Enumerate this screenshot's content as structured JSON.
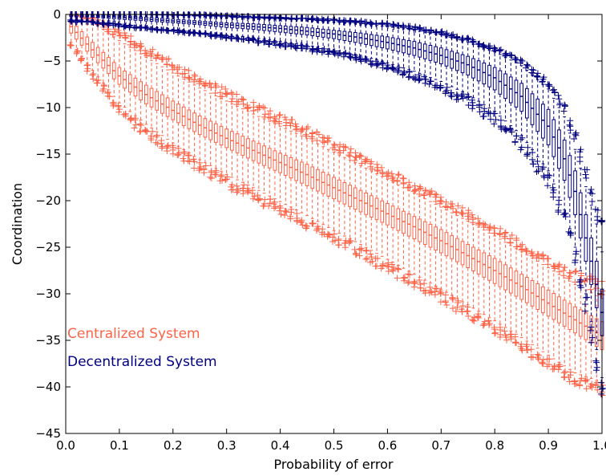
{
  "chart_data": {
    "type": "box",
    "xlabel": "Probability of error",
    "ylabel": "Coordination",
    "xlim": [
      0.0,
      1.0
    ],
    "ylim": [
      -45,
      0
    ],
    "x_ticks": [
      "0.0",
      "0.1",
      "0.2",
      "0.3",
      "0.4",
      "0.5",
      "0.6",
      "0.7",
      "0.8",
      "0.9",
      "1.0"
    ],
    "y_ticks": [
      "0",
      "−5",
      "−10",
      "−15",
      "−20",
      "−25",
      "−30",
      "−35",
      "−40",
      "−45"
    ],
    "x_tick_values": [
      0.0,
      0.1,
      0.2,
      0.3,
      0.4,
      0.5,
      0.6,
      0.7,
      0.8,
      0.9,
      1.0
    ],
    "y_tick_values": [
      0,
      -5,
      -10,
      -15,
      -20,
      -25,
      -30,
      -35,
      -40,
      -45
    ],
    "grid": false,
    "legend_position": "left",
    "series": [
      {
        "name": "Centralized System",
        "color": "#ff6347",
        "x": [
          0.01,
          0.05,
          0.1,
          0.15,
          0.2,
          0.25,
          0.3,
          0.35,
          0.4,
          0.45,
          0.5,
          0.55,
          0.6,
          0.65,
          0.7,
          0.75,
          0.8,
          0.85,
          0.9,
          0.95,
          1.0
        ],
        "median": [
          -1.3,
          -3.8,
          -6.6,
          -8.6,
          -10.3,
          -11.9,
          -13.3,
          -14.6,
          -15.9,
          -17.2,
          -18.6,
          -20.0,
          -21.4,
          -22.8,
          -24.3,
          -25.9,
          -27.5,
          -29.2,
          -31.0,
          -32.8,
          -34.5
        ],
        "q1": [
          -2.0,
          -4.6,
          -7.5,
          -9.6,
          -11.3,
          -12.9,
          -14.3,
          -15.7,
          -17.0,
          -18.4,
          -19.8,
          -21.2,
          -22.6,
          -24.1,
          -25.6,
          -27.2,
          -28.9,
          -30.6,
          -32.4,
          -34.2,
          -36.0
        ],
        "q3": [
          -0.7,
          -3.0,
          -5.7,
          -7.6,
          -9.3,
          -10.9,
          -12.3,
          -13.6,
          -14.9,
          -16.1,
          -17.5,
          -18.9,
          -20.3,
          -21.7,
          -23.1,
          -24.7,
          -26.2,
          -27.9,
          -29.6,
          -31.4,
          -33.0
        ],
        "lower": [
          -3.0,
          -6.0,
          -9.5,
          -11.8,
          -13.8,
          -15.6,
          -17.2,
          -18.6,
          -20.1,
          -21.6,
          -23.2,
          -24.7,
          -26.3,
          -27.9,
          -29.5,
          -31.2,
          -32.9,
          -34.7,
          -36.6,
          -38.5,
          -39.5
        ],
        "upper": [
          0.0,
          -0.8,
          -2.8,
          -4.6,
          -6.3,
          -7.9,
          -9.3,
          -10.7,
          -12.0,
          -13.3,
          -14.8,
          -16.2,
          -17.7,
          -19.2,
          -20.7,
          -22.2,
          -23.8,
          -25.5,
          -27.2,
          -29.0,
          -30.5
        ],
        "outlier_low": [
          -3.5,
          -7.0,
          -10.8,
          -13.2,
          -15.2,
          -17.0,
          -18.6,
          -20.0,
          -21.5,
          -23.0,
          -24.6,
          -26.1,
          -27.7,
          -29.3,
          -30.9,
          -32.6,
          -34.3,
          -36.1,
          -38.0,
          -39.8,
          -41.0
        ],
        "outlier_high": [
          0.0,
          -0.3,
          -1.6,
          -3.4,
          -5.0,
          -6.6,
          -8.0,
          -9.4,
          -10.7,
          -12.0,
          -13.5,
          -15.0,
          -16.5,
          -18.0,
          -19.5,
          -21.0,
          -22.6,
          -24.3,
          -26.0,
          -27.5,
          -28.5
        ]
      },
      {
        "name": "Decentralized System",
        "color": "#000080",
        "x": [
          0.01,
          0.05,
          0.1,
          0.15,
          0.2,
          0.25,
          0.3,
          0.35,
          0.4,
          0.45,
          0.5,
          0.55,
          0.6,
          0.65,
          0.7,
          0.75,
          0.8,
          0.85,
          0.9,
          0.93,
          0.95,
          0.97,
          0.99,
          1.0
        ],
        "median": [
          0.0,
          -0.1,
          -0.3,
          -0.5,
          -0.7,
          -0.9,
          -1.1,
          -1.3,
          -1.5,
          -1.8,
          -2.1,
          -2.5,
          -3.0,
          -3.6,
          -4.4,
          -5.4,
          -6.8,
          -8.8,
          -12.0,
          -15.5,
          -19.0,
          -24.0,
          -29.0,
          -32.0
        ],
        "q1": [
          -0.2,
          -0.3,
          -0.5,
          -0.7,
          -0.9,
          -1.1,
          -1.4,
          -1.6,
          -1.9,
          -2.2,
          -2.6,
          -3.1,
          -3.7,
          -4.4,
          -5.3,
          -6.5,
          -8.1,
          -10.4,
          -14.0,
          -17.8,
          -21.5,
          -26.5,
          -31.5,
          -34.5
        ],
        "q3": [
          0.0,
          0.0,
          -0.1,
          -0.3,
          -0.5,
          -0.7,
          -0.9,
          -1.0,
          -1.2,
          -1.4,
          -1.7,
          -2.0,
          -2.4,
          -2.9,
          -3.6,
          -4.5,
          -5.7,
          -7.4,
          -10.2,
          -13.5,
          -16.8,
          -21.5,
          -26.5,
          -29.5
        ],
        "lower": [
          -0.5,
          -0.7,
          -1.0,
          -1.3,
          -1.6,
          -1.9,
          -2.2,
          -2.5,
          -2.9,
          -3.3,
          -3.8,
          -4.4,
          -5.2,
          -6.1,
          -7.2,
          -8.6,
          -10.4,
          -13.0,
          -16.8,
          -21.0,
          -25.0,
          -30.0,
          -36.0,
          -39.0
        ],
        "upper": [
          0.0,
          0.0,
          0.0,
          0.0,
          -0.1,
          -0.2,
          -0.3,
          -0.4,
          -0.5,
          -0.6,
          -0.8,
          -1.0,
          -1.3,
          -1.7,
          -2.2,
          -3.0,
          -4.0,
          -5.5,
          -8.0,
          -11.0,
          -14.5,
          -18.5,
          -22.5,
          -25.5
        ],
        "outlier_low": [
          -0.8,
          -1.0,
          -1.3,
          -1.6,
          -1.9,
          -2.2,
          -2.6,
          -3.0,
          -3.4,
          -3.9,
          -4.4,
          -5.1,
          -6.0,
          -7.0,
          -8.3,
          -9.8,
          -11.8,
          -14.6,
          -18.8,
          -23.0,
          -27.0,
          -32.0,
          -38.5,
          -41.0
        ],
        "outlier_high": [
          0.0,
          0.0,
          0.0,
          0.0,
          0.0,
          0.0,
          -0.1,
          -0.2,
          -0.3,
          -0.4,
          -0.5,
          -0.7,
          -0.9,
          -1.3,
          -1.8,
          -2.5,
          -3.5,
          -4.8,
          -7.0,
          -9.5,
          -12.5,
          -16.5,
          -20.5,
          -22.0
        ]
      }
    ]
  }
}
